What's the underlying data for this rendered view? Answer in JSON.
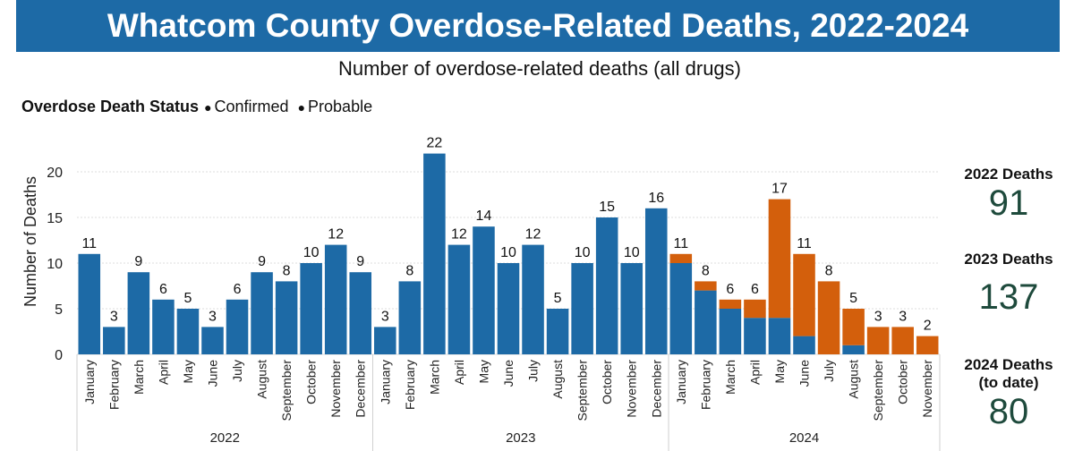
{
  "title": "Whatcom County Overdose-Related Deaths, 2022-2024",
  "subtitle": "Number of overdose-related deaths (all drugs)",
  "legend": {
    "title": "Overdose Death Status",
    "items": [
      {
        "label": "Confirmed",
        "color": "#1d6aa6"
      },
      {
        "label": "Probable",
        "color": "#d35f0c"
      }
    ]
  },
  "stats": [
    {
      "label": "2022 Deaths",
      "value": "91"
    },
    {
      "label": "2023 Deaths",
      "value": "137"
    },
    {
      "label": "2024 Deaths (to date)",
      "value": "80"
    }
  ],
  "chart_data": {
    "type": "bar",
    "stacked": true,
    "ylabel": "Number of Deaths",
    "ylim": [
      0,
      22
    ],
    "yticks": [
      0,
      5,
      10,
      15,
      20
    ],
    "grid": true,
    "groups": [
      {
        "label": "2022",
        "months": [
          "January",
          "February",
          "March",
          "April",
          "May",
          "June",
          "July",
          "August",
          "September",
          "October",
          "November",
          "December"
        ]
      },
      {
        "label": "2023",
        "months": [
          "January",
          "February",
          "March",
          "April",
          "May",
          "June",
          "July",
          "August",
          "September",
          "October",
          "November",
          "December"
        ]
      },
      {
        "label": "2024",
        "months": [
          "January",
          "February",
          "March",
          "April",
          "May",
          "June",
          "July",
          "August",
          "September",
          "October",
          "November"
        ]
      }
    ],
    "series": [
      {
        "name": "Confirmed",
        "color": "#1d6aa6",
        "values": [
          11,
          3,
          9,
          6,
          5,
          3,
          6,
          9,
          8,
          10,
          12,
          9,
          3,
          8,
          22,
          12,
          14,
          10,
          12,
          5,
          10,
          15,
          10,
          16,
          10,
          7,
          5,
          4,
          4,
          2,
          0,
          1,
          0,
          0,
          0
        ]
      },
      {
        "name": "Probable",
        "color": "#d35f0c",
        "values": [
          0,
          0,
          0,
          0,
          0,
          0,
          0,
          0,
          0,
          0,
          0,
          0,
          0,
          0,
          0,
          0,
          0,
          0,
          0,
          0,
          0,
          0,
          0,
          0,
          1,
          1,
          1,
          2,
          13,
          9,
          8,
          4,
          3,
          3,
          2
        ]
      }
    ],
    "totals": [
      11,
      3,
      9,
      6,
      5,
      3,
      6,
      9,
      8,
      10,
      12,
      9,
      3,
      8,
      22,
      12,
      14,
      10,
      12,
      5,
      10,
      15,
      10,
      16,
      11,
      8,
      6,
      6,
      17,
      11,
      8,
      5,
      3,
      3,
      2
    ]
  }
}
